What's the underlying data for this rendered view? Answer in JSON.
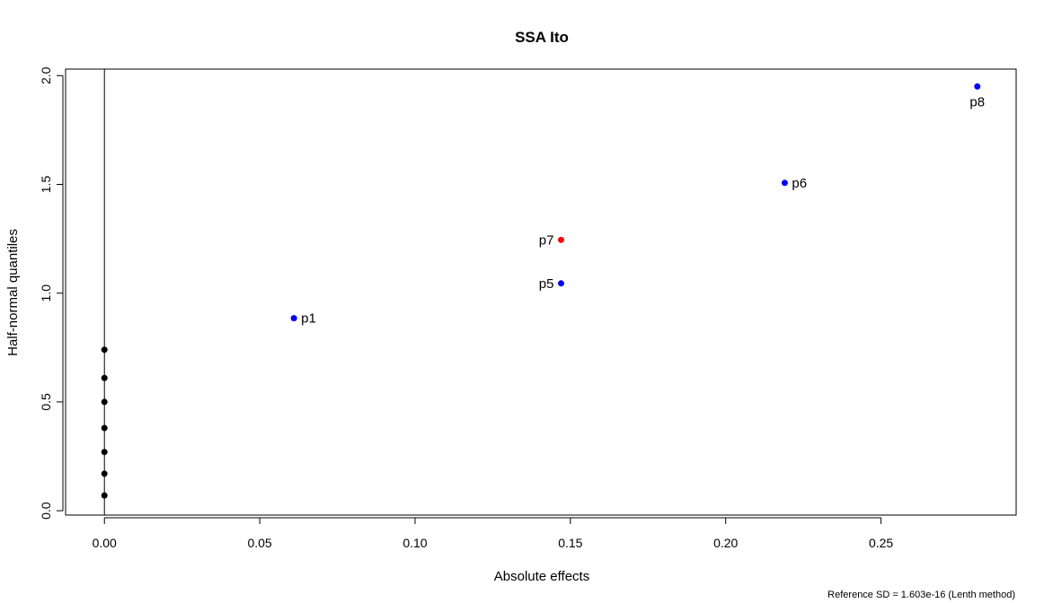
{
  "chart_data": {
    "type": "scatter",
    "title": "SSA Ito",
    "xlabel": "Absolute effects",
    "ylabel": "Half-normal quantiles",
    "footnote": "Reference SD = 1.603e-16 (Lenth method)",
    "xlim": [
      -0.0125,
      0.2935
    ],
    "ylim": [
      -0.02,
      2.03
    ],
    "xticks": [
      0.0,
      0.05,
      0.1,
      0.15,
      0.2,
      0.25
    ],
    "xtick_labels": [
      "0.00",
      "0.05",
      "0.10",
      "0.15",
      "0.20",
      "0.25"
    ],
    "yticks": [
      0.0,
      0.5,
      1.0,
      1.5,
      2.0
    ],
    "ytick_labels": [
      "0.0",
      "0.5",
      "1.0",
      "1.5",
      "2.0"
    ],
    "vertical_line_x": 0.0,
    "grid": false,
    "points": [
      {
        "x": 0.0,
        "y": 0.07,
        "label": "",
        "color": "#000000"
      },
      {
        "x": 0.0,
        "y": 0.17,
        "label": "",
        "color": "#000000"
      },
      {
        "x": 0.0,
        "y": 0.27,
        "label": "",
        "color": "#000000"
      },
      {
        "x": 0.0,
        "y": 0.38,
        "label": "",
        "color": "#000000"
      },
      {
        "x": 0.0,
        "y": 0.5,
        "label": "",
        "color": "#000000"
      },
      {
        "x": 0.0,
        "y": 0.61,
        "label": "",
        "color": "#000000"
      },
      {
        "x": 0.0,
        "y": 0.74,
        "label": "",
        "color": "#000000"
      },
      {
        "x": 0.061,
        "y": 0.885,
        "label": "p1",
        "color": "#0000ff",
        "label_pos": "right"
      },
      {
        "x": 0.147,
        "y": 1.045,
        "label": "p5",
        "color": "#0000ff",
        "label_pos": "left"
      },
      {
        "x": 0.147,
        "y": 1.245,
        "label": "p7",
        "color": "#ff0000",
        "label_pos": "left"
      },
      {
        "x": 0.219,
        "y": 1.507,
        "label": "p6",
        "color": "#0000ff",
        "label_pos": "right"
      },
      {
        "x": 0.281,
        "y": 1.95,
        "label": "p8",
        "color": "#0000ff",
        "label_pos": "below"
      }
    ]
  }
}
